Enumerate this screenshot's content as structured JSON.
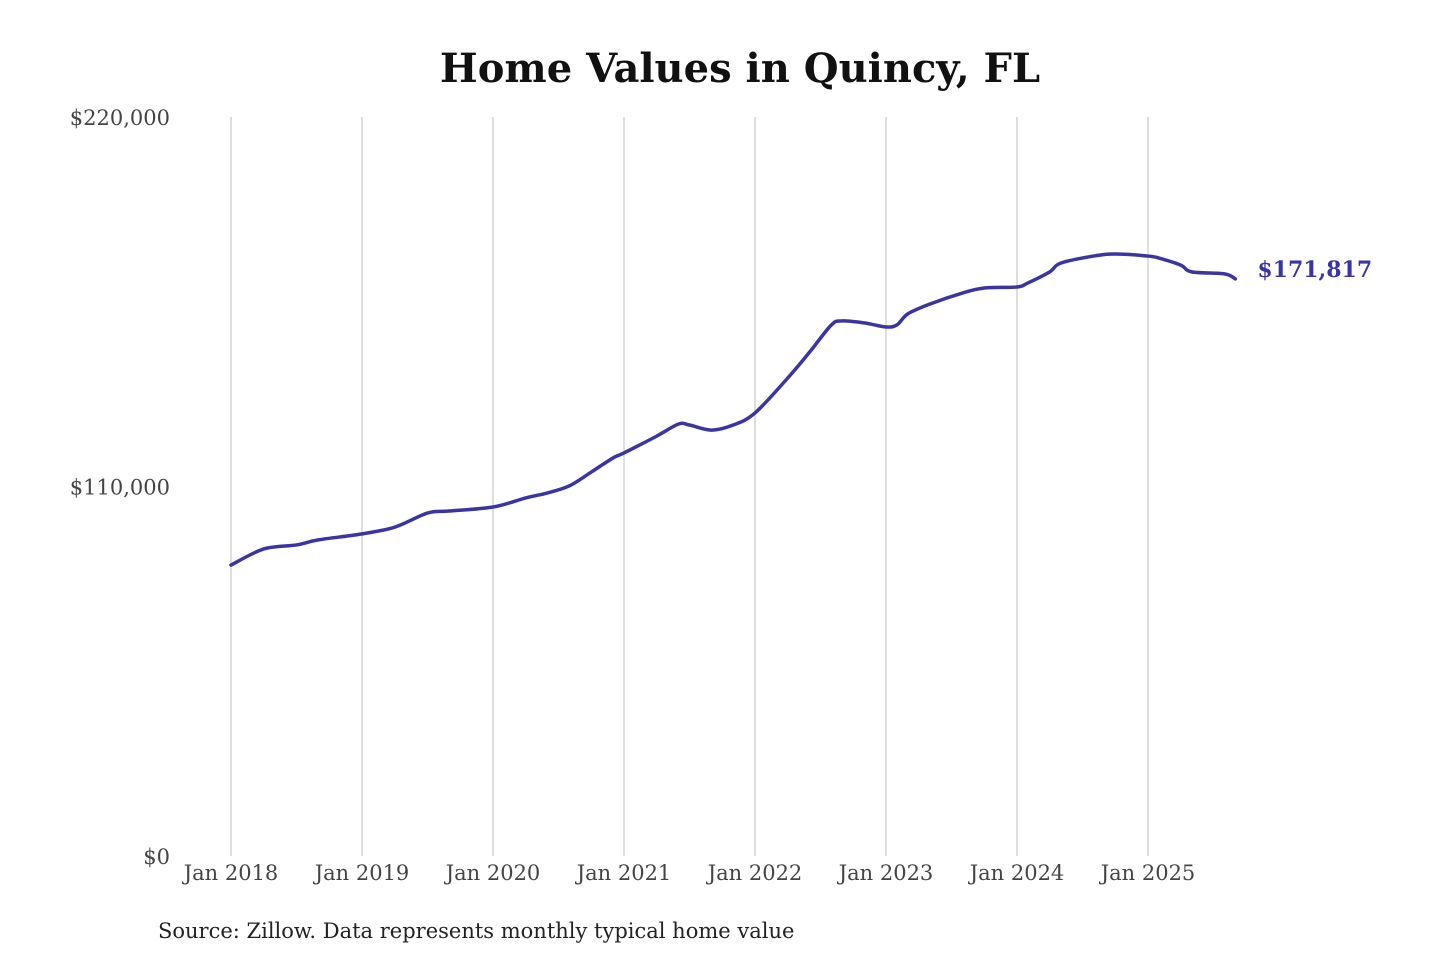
{
  "chart_data": {
    "type": "line",
    "title": "Home Values in Quincy, FL",
    "source": "Source: Zillow. Data represents monthly typical home value",
    "xlabel": "",
    "ylabel": "",
    "ylim": [
      0,
      220000
    ],
    "y_ticks": [
      0,
      110000,
      220000
    ],
    "y_tick_labels": [
      "$0",
      "$110,000",
      "$220,000"
    ],
    "x_ticks": [
      "2018-01",
      "2019-01",
      "2020-01",
      "2021-01",
      "2022-01",
      "2023-01",
      "2024-01",
      "2025-01"
    ],
    "x_tick_labels": [
      "Jan 2018",
      "Jan 2019",
      "Jan 2020",
      "Jan 2021",
      "Jan 2022",
      "Jan 2023",
      "Jan 2024",
      "Jan 2025"
    ],
    "grid": "vertical",
    "line_color": "#3a35a0",
    "end_label": "$171,817",
    "series": [
      {
        "points": [
          [
            "2018-01",
            86600
          ],
          [
            "2018-04",
            91400
          ],
          [
            "2018-07",
            92600
          ],
          [
            "2018-09",
            94100
          ],
          [
            "2019-01",
            95900
          ],
          [
            "2019-04",
            97900
          ],
          [
            "2019-07",
            102100
          ],
          [
            "2019-09",
            102700
          ],
          [
            "2020-01",
            103900
          ],
          [
            "2020-04",
            106600
          ],
          [
            "2020-06",
            108100
          ],
          [
            "2020-08",
            110200
          ],
          [
            "2020-10",
            114300
          ],
          [
            "2020-12",
            118500
          ],
          [
            "2021-01",
            120000
          ],
          [
            "2021-04",
            125000
          ],
          [
            "2021-06",
            128600
          ],
          [
            "2021-07",
            128300
          ],
          [
            "2021-09",
            126800
          ],
          [
            "2021-11",
            128300
          ],
          [
            "2022-01",
            131900
          ],
          [
            "2022-04",
            142300
          ],
          [
            "2022-06",
            150000
          ],
          [
            "2022-08",
            158100
          ],
          [
            "2022-09",
            159300
          ],
          [
            "2022-11",
            158700
          ],
          [
            "2023-01",
            157500
          ],
          [
            "2023-02",
            158100
          ],
          [
            "2023-03",
            161400
          ],
          [
            "2023-05",
            164300
          ],
          [
            "2023-08",
            167600
          ],
          [
            "2023-10",
            169100
          ],
          [
            "2024-01",
            169400
          ],
          [
            "2024-02",
            170600
          ],
          [
            "2024-04",
            173900
          ],
          [
            "2024-05",
            176500
          ],
          [
            "2024-08",
            178600
          ],
          [
            "2024-10",
            179200
          ],
          [
            "2025-01",
            178600
          ],
          [
            "2025-02",
            178000
          ],
          [
            "2025-04",
            175900
          ],
          [
            "2025-05",
            173900
          ],
          [
            "2025-08",
            173300
          ],
          [
            "2025-09",
            171817
          ]
        ]
      }
    ]
  }
}
